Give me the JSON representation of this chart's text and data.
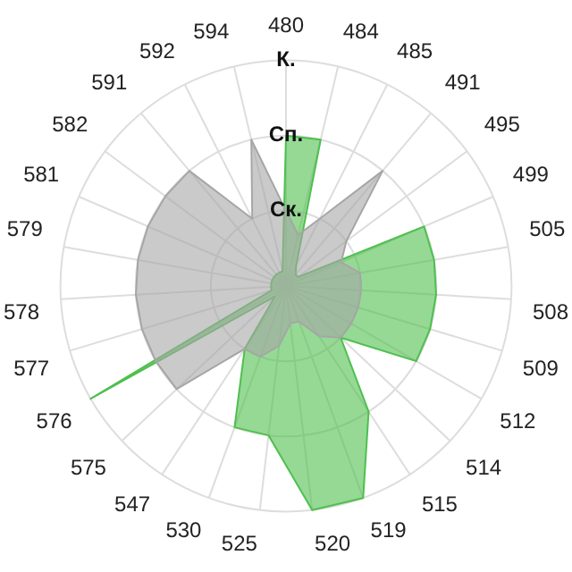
{
  "chart_data": {
    "type": "radar",
    "categories": [
      "480",
      "484",
      "485",
      "491",
      "495",
      "499",
      "505",
      "508",
      "509",
      "512",
      "514",
      "515",
      "519",
      "520",
      "525",
      "530",
      "547",
      "575",
      "576",
      "577",
      "578",
      "579",
      "581",
      "582",
      "591",
      "592",
      "594"
    ],
    "series": [
      {
        "color": "#a6a6a6",
        "values": [
          1,
          0.7,
          1,
          2,
          1,
          0.8,
          1,
          1,
          1,
          1,
          1,
          0.8,
          0.5,
          0.5,
          0.8,
          1,
          1,
          2,
          2,
          2,
          2,
          2,
          2,
          2,
          2,
          1,
          2
        ]
      },
      {
        "color": "#4fbf4f",
        "values": [
          2,
          2,
          0.3,
          0.2,
          0.2,
          2,
          2,
          2,
          2,
          2,
          1,
          2,
          3,
          3,
          2,
          2,
          1,
          0.2,
          3,
          0.2,
          0.2,
          0.2,
          0.2,
          0.2,
          0.2,
          0.2,
          0.2
        ]
      }
    ],
    "ylim": [
      0,
      3
    ],
    "yticks": [
      {
        "value": 1,
        "label": "Ск."
      },
      {
        "value": 2,
        "label": "Сп."
      },
      {
        "value": 3,
        "label": "К."
      }
    ],
    "grid": true,
    "legend": false,
    "marker": "none"
  }
}
